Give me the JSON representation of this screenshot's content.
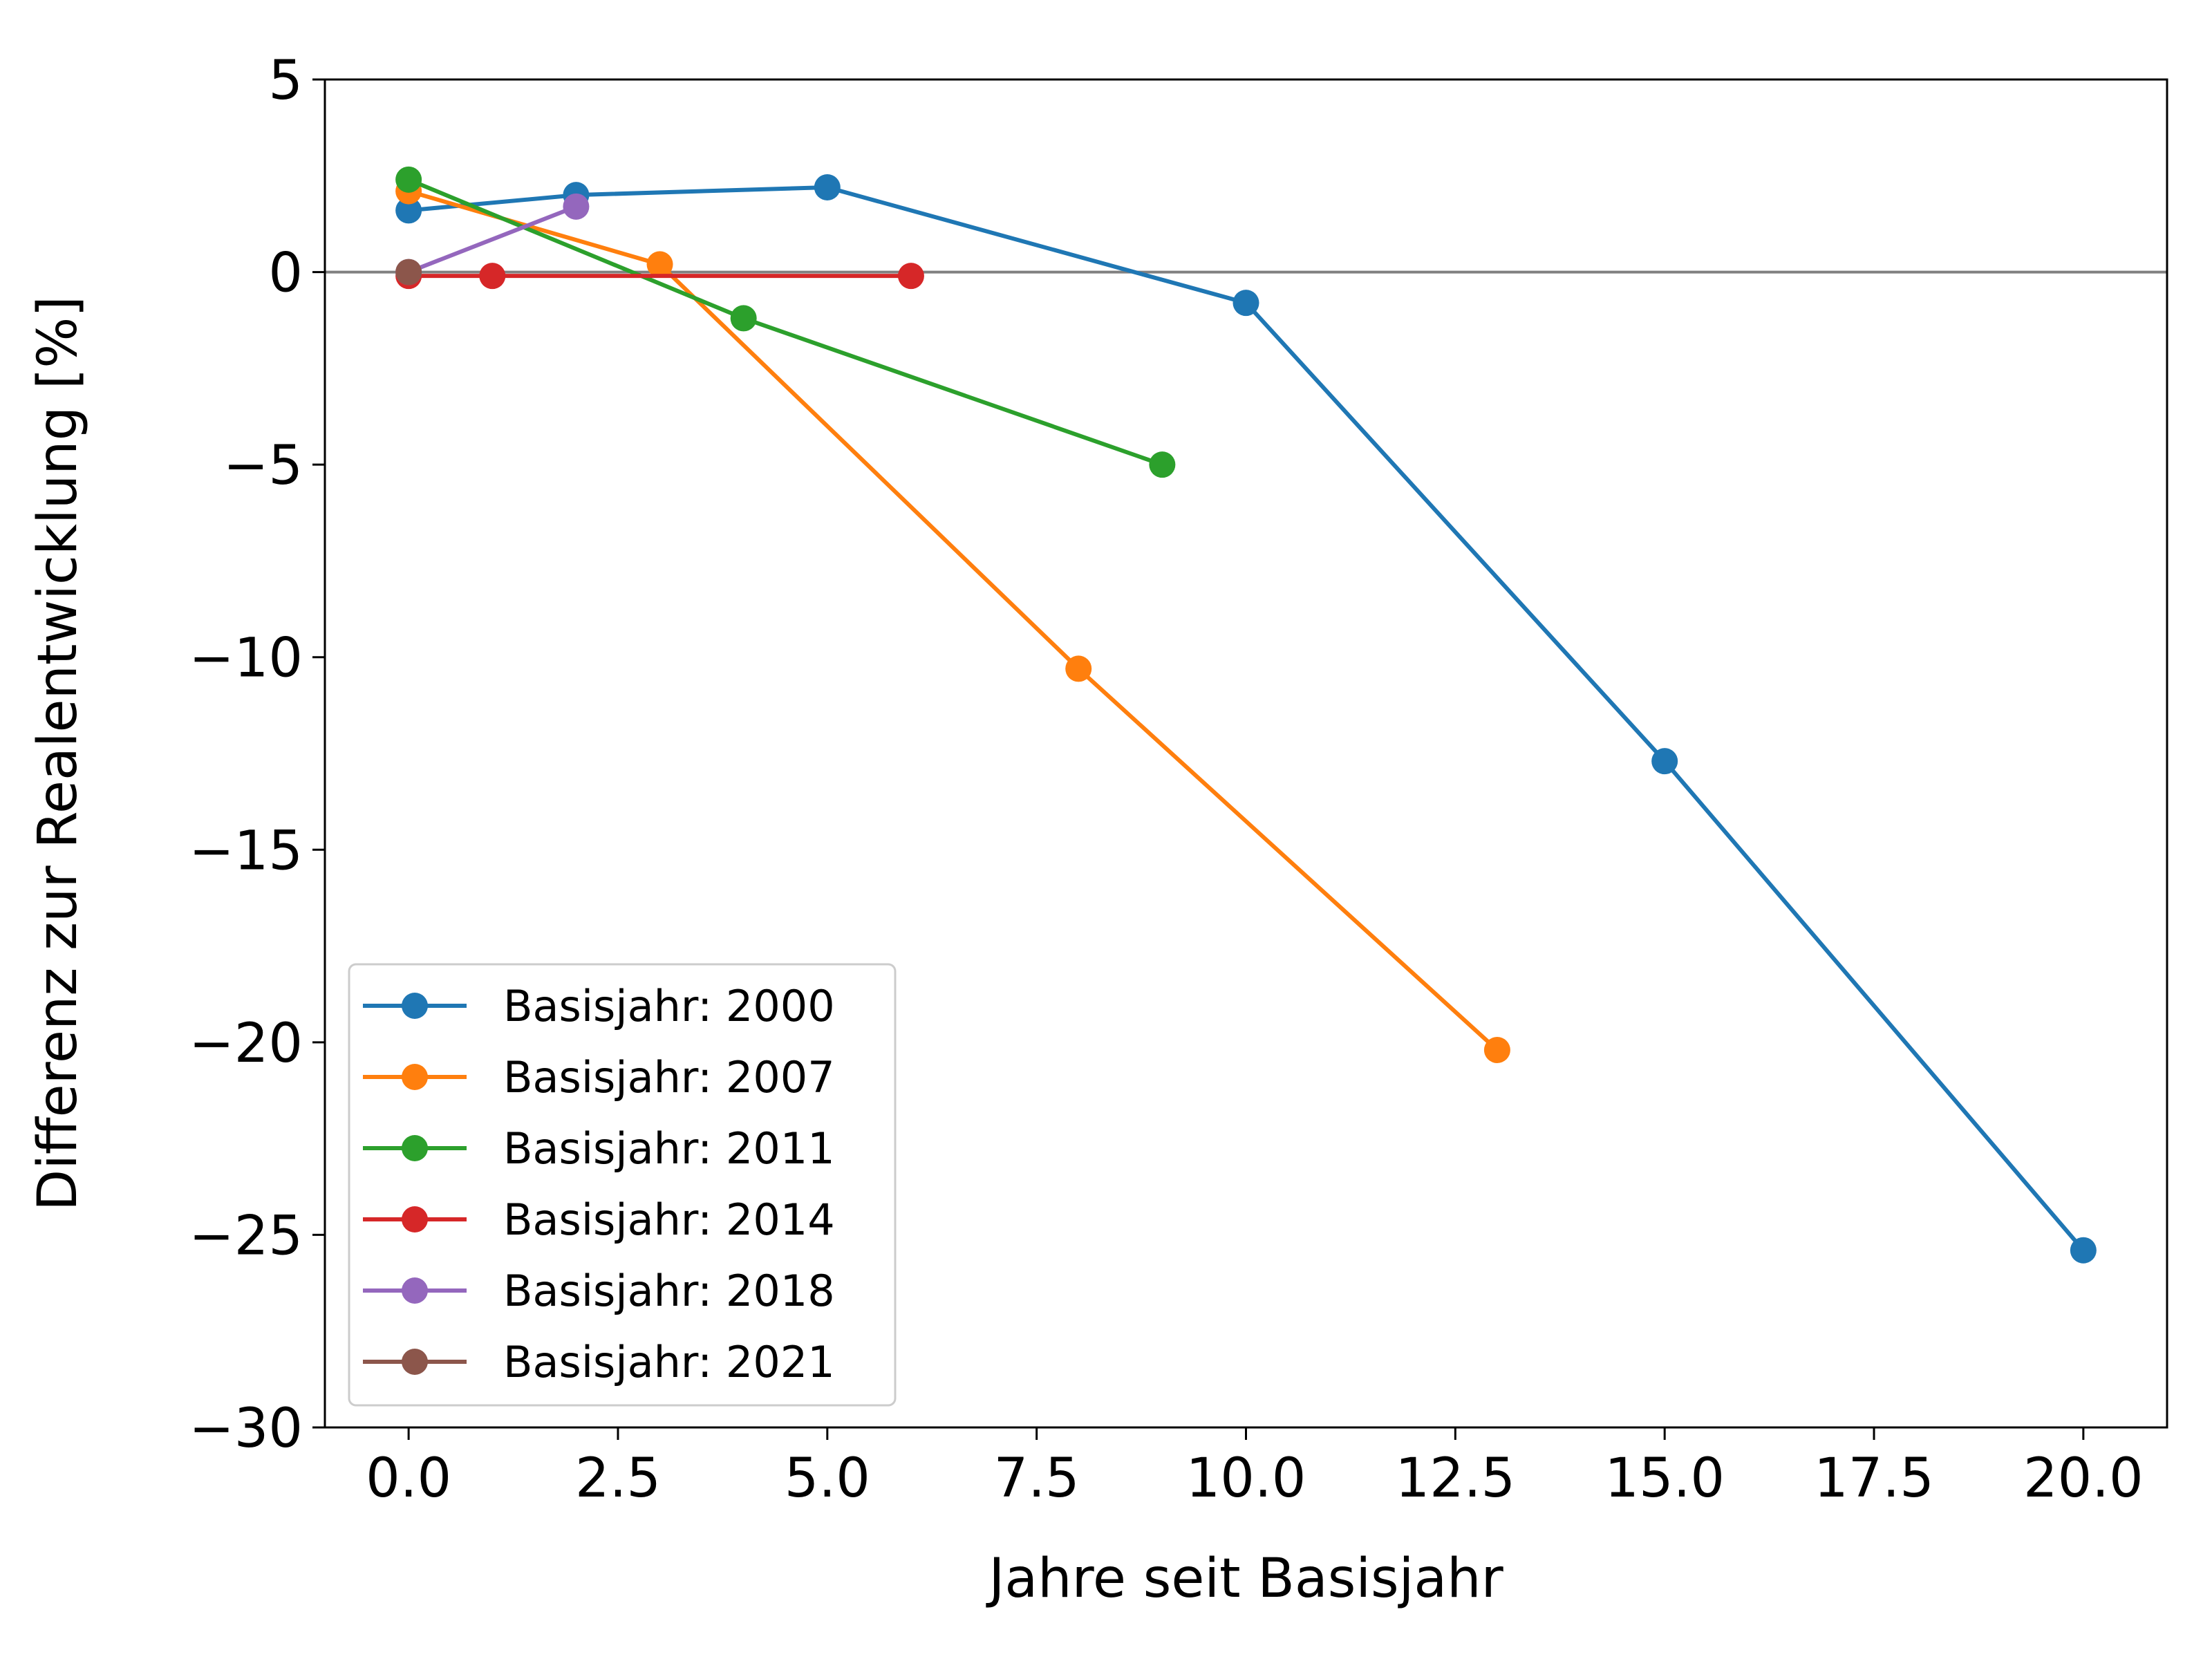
{
  "chart_data": {
    "type": "line",
    "xlabel": "Jahre seit Basisjahr",
    "ylabel": "Differenz zur Realentwicklung [%]",
    "xlim": [
      -1,
      21
    ],
    "ylim": [
      -30,
      5
    ],
    "xticks": [
      0.0,
      2.5,
      5.0,
      7.5,
      10.0,
      12.5,
      15.0,
      17.5,
      20.0
    ],
    "xtick_labels": [
      "0.0",
      "2.5",
      "5.0",
      "7.5",
      "10.0",
      "12.5",
      "15.0",
      "17.5",
      "20.0"
    ],
    "yticks": [
      5,
      0,
      -5,
      -10,
      -15,
      -20,
      -25,
      -30
    ],
    "ytick_labels": [
      "5",
      "0",
      "−5",
      "−10",
      "−15",
      "−20",
      "−25",
      "−30"
    ],
    "reference_line": {
      "y": 0,
      "color": "#808080"
    },
    "grid": false,
    "legend_position": "lower-left",
    "series": [
      {
        "name": "Basisjahr: 2000",
        "color": "#1f77b4",
        "x": [
          0,
          2,
          5,
          10,
          15,
          20
        ],
        "y": [
          1.6,
          2.0,
          2.2,
          -0.8,
          -12.7,
          -25.4
        ]
      },
      {
        "name": "Basisjahr: 2007",
        "color": "#ff7f0e",
        "x": [
          0,
          3,
          8,
          13
        ],
        "y": [
          2.1,
          0.2,
          -10.3,
          -20.2
        ]
      },
      {
        "name": "Basisjahr: 2011",
        "color": "#2ca02c",
        "x": [
          0,
          4,
          9
        ],
        "y": [
          2.4,
          -1.2,
          -5.0
        ]
      },
      {
        "name": "Basisjahr: 2014",
        "color": "#d62728",
        "x": [
          0,
          1,
          6
        ],
        "y": [
          -0.1,
          -0.1,
          -0.1
        ]
      },
      {
        "name": "Basisjahr: 2018",
        "color": "#9467bd",
        "x": [
          0,
          2
        ],
        "y": [
          0.0,
          1.7
        ]
      },
      {
        "name": "Basisjahr: 2021",
        "color": "#8c564b",
        "x": [
          0
        ],
        "y": [
          0.0
        ]
      }
    ]
  }
}
